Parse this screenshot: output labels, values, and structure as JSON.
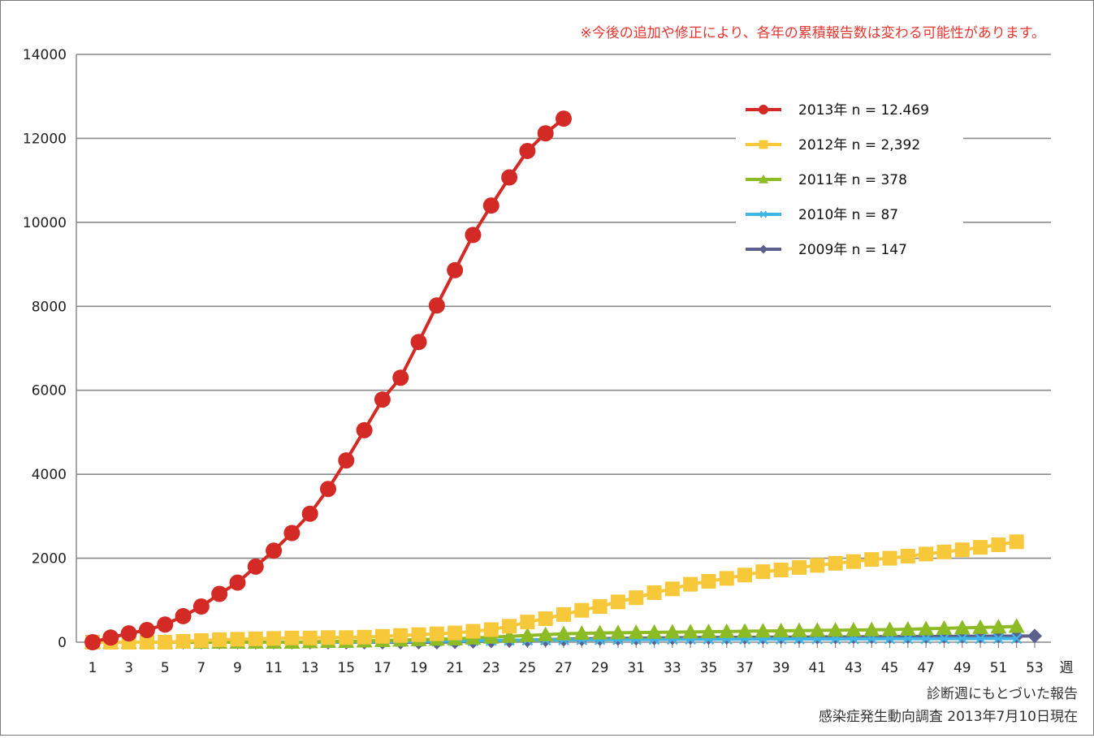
{
  "chart_data": {
    "type": "line",
    "title": "",
    "note": "※今後の追加や修正により、各年の累積報告数は変わる可能性があります。",
    "xlabel": "週",
    "ylabel": "",
    "ylim": [
      0,
      14000
    ],
    "yticks": [
      "0",
      "2000",
      "4000",
      "6000",
      "8000",
      "10000",
      "12000",
      "14000"
    ],
    "xticks": [
      "1",
      "3",
      "5",
      "7",
      "9",
      "11",
      "13",
      "15",
      "17",
      "19",
      "21",
      "23",
      "25",
      "27",
      "29",
      "31",
      "33",
      "35",
      "37",
      "39",
      "41",
      "43",
      "45",
      "47",
      "49",
      "51",
      "53"
    ],
    "grid": true,
    "legend_position": "top-right",
    "footnotes": [
      "診断週にもとづいた報告",
      "感染症発生動向調査 2013年7月10日現在"
    ],
    "series": [
      {
        "name": "2013年 n = 12.469",
        "color": "#d42a25",
        "marker": "circle",
        "x": [
          1,
          2,
          3,
          4,
          5,
          6,
          7,
          8,
          9,
          10,
          11,
          12,
          13,
          14,
          15,
          16,
          17,
          18,
          19,
          20,
          21,
          22,
          23,
          24,
          25,
          26,
          27
        ],
        "values": [
          0,
          110,
          210,
          290,
          420,
          620,
          850,
          1150,
          1420,
          1800,
          2180,
          2600,
          3060,
          3650,
          4330,
          5050,
          5780,
          6300,
          7150,
          8020,
          8860,
          9700,
          10400,
          11070,
          11700,
          12120,
          12469
        ]
      },
      {
        "name": "2012年 n = 2,392",
        "color": "#f6c83a",
        "marker": "square",
        "x": [
          1,
          2,
          3,
          4,
          5,
          6,
          7,
          8,
          9,
          10,
          11,
          12,
          13,
          14,
          15,
          16,
          17,
          18,
          19,
          20,
          21,
          22,
          23,
          24,
          25,
          26,
          27,
          28,
          29,
          30,
          31,
          32,
          33,
          34,
          35,
          36,
          37,
          38,
          39,
          40,
          41,
          42,
          43,
          44,
          45,
          46,
          47,
          48,
          49,
          50,
          51,
          52
        ],
        "values": [
          0,
          0,
          0,
          0,
          0,
          20,
          40,
          60,
          70,
          80,
          90,
          100,
          100,
          110,
          110,
          120,
          140,
          160,
          180,
          200,
          220,
          260,
          300,
          380,
          480,
          560,
          660,
          760,
          850,
          960,
          1060,
          1180,
          1270,
          1380,
          1450,
          1520,
          1600,
          1680,
          1720,
          1780,
          1830,
          1880,
          1920,
          1970,
          2000,
          2050,
          2100,
          2150,
          2200,
          2260,
          2320,
          2392
        ]
      },
      {
        "name": "2011年 n = 378",
        "color": "#8dbb25",
        "marker": "triangle",
        "x": [
          1,
          2,
          3,
          4,
          5,
          6,
          7,
          8,
          9,
          10,
          11,
          12,
          13,
          14,
          15,
          16,
          17,
          18,
          19,
          20,
          21,
          22,
          23,
          24,
          25,
          26,
          27,
          28,
          29,
          30,
          31,
          32,
          33,
          34,
          35,
          36,
          37,
          38,
          39,
          40,
          41,
          42,
          43,
          44,
          45,
          46,
          47,
          48,
          49,
          50,
          51,
          52
        ],
        "values": [
          0,
          0,
          0,
          0,
          0,
          0,
          0,
          0,
          0,
          0,
          0,
          0,
          10,
          20,
          20,
          30,
          40,
          50,
          60,
          70,
          80,
          100,
          120,
          140,
          160,
          180,
          200,
          210,
          220,
          225,
          230,
          235,
          240,
          245,
          250,
          255,
          260,
          265,
          270,
          275,
          280,
          285,
          290,
          295,
          300,
          310,
          320,
          330,
          340,
          350,
          360,
          378
        ]
      },
      {
        "name": "2010年 n = 87",
        "color": "#3fb5e8",
        "marker": "x",
        "x": [
          1,
          2,
          3,
          4,
          5,
          6,
          7,
          8,
          9,
          10,
          11,
          12,
          13,
          14,
          15,
          16,
          17,
          18,
          19,
          20,
          21,
          22,
          23,
          24,
          25,
          26,
          27,
          28,
          29,
          30,
          31,
          32,
          33,
          34,
          35,
          36,
          37,
          38,
          39,
          40,
          41,
          42,
          43,
          44,
          45,
          46,
          47,
          48,
          49,
          50,
          51,
          52
        ],
        "values": [
          0,
          0,
          0,
          0,
          0,
          0,
          0,
          0,
          0,
          0,
          0,
          0,
          0,
          0,
          5,
          10,
          10,
          15,
          20,
          25,
          30,
          35,
          40,
          45,
          50,
          52,
          55,
          58,
          60,
          62,
          64,
          66,
          68,
          70,
          71,
          72,
          73,
          74,
          75,
          76,
          77,
          78,
          79,
          80,
          81,
          82,
          83,
          84,
          85,
          86,
          86,
          87
        ]
      },
      {
        "name": "2009年 n = 147",
        "color": "#5d5f8e",
        "marker": "diamond",
        "x": [
          1,
          2,
          3,
          4,
          5,
          6,
          7,
          8,
          9,
          10,
          11,
          12,
          13,
          14,
          15,
          16,
          17,
          18,
          19,
          20,
          21,
          22,
          23,
          24,
          25,
          26,
          27,
          28,
          29,
          30,
          31,
          32,
          33,
          34,
          35,
          36,
          37,
          38,
          39,
          40,
          41,
          42,
          43,
          44,
          45,
          46,
          47,
          48,
          49,
          50,
          51,
          52,
          53
        ],
        "values": [
          0,
          0,
          0,
          0,
          0,
          0,
          0,
          0,
          0,
          0,
          0,
          0,
          0,
          0,
          0,
          0,
          0,
          0,
          0,
          0,
          10,
          20,
          30,
          40,
          50,
          60,
          70,
          80,
          85,
          90,
          95,
          100,
          105,
          110,
          112,
          114,
          116,
          118,
          120,
          122,
          124,
          126,
          128,
          130,
          132,
          134,
          136,
          138,
          140,
          142,
          144,
          146,
          147
        ]
      }
    ]
  }
}
